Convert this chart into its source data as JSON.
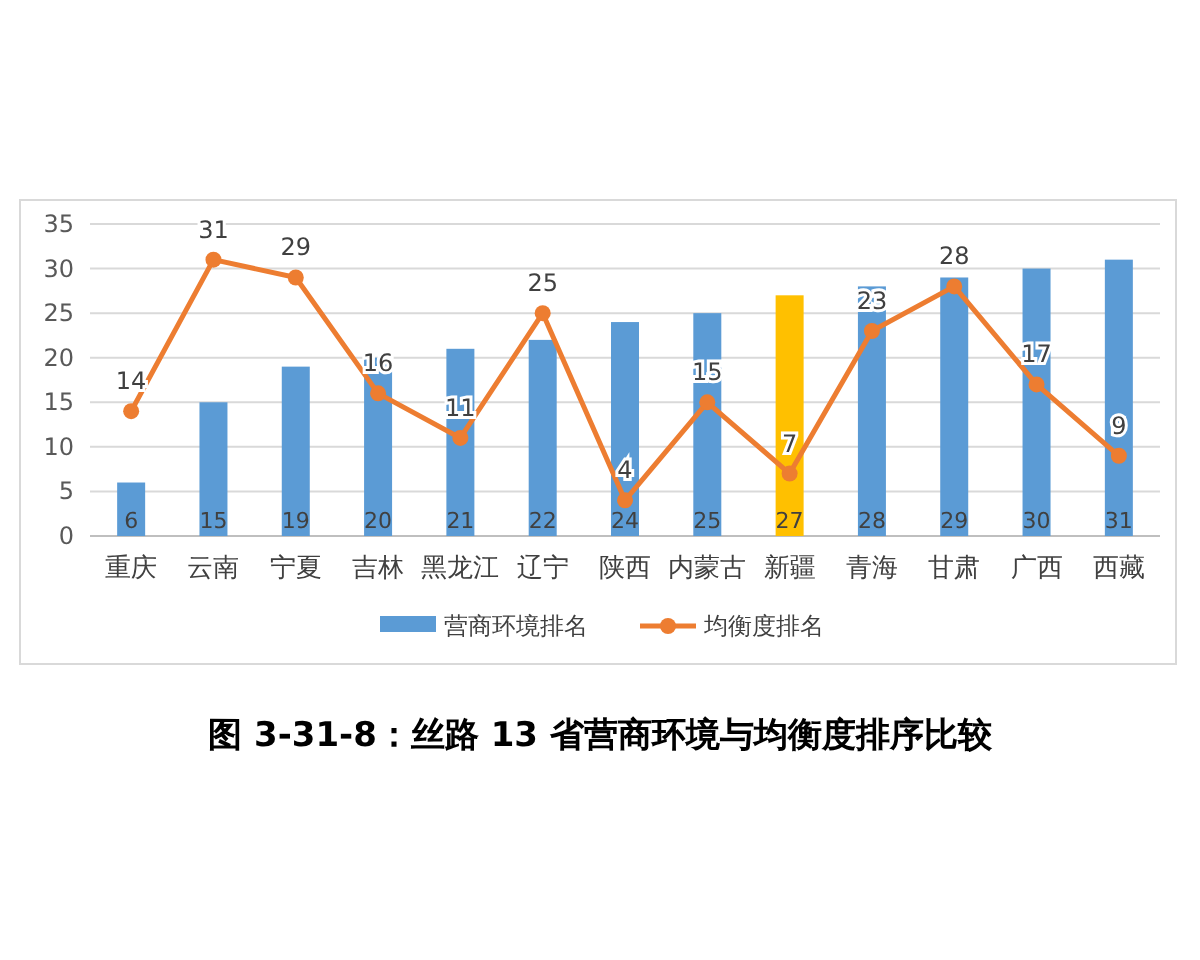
{
  "chart_data": {
    "type": "bar",
    "title": "图 3-31-8：丝路 13 省营商环境与均衡度排序比较",
    "categories": [
      "重庆",
      "云南",
      "宁夏",
      "吉林",
      "黑龙江",
      "辽宁",
      "陕西",
      "内蒙古",
      "新疆",
      "青海",
      "甘肃",
      "广西",
      "西藏"
    ],
    "series": [
      {
        "name": "营商环境排名",
        "color": "#5b9bd5",
        "colors": [
          "#5b9bd5",
          "#5b9bd5",
          "#5b9bd5",
          "#5b9bd5",
          "#5b9bd5",
          "#5b9bd5",
          "#5b9bd5",
          "#5b9bd5",
          "#ffc000",
          "#5b9bd5",
          "#5b9bd5",
          "#5b9bd5",
          "#5b9bd5"
        ],
        "values": [
          6,
          15,
          19,
          20,
          21,
          22,
          24,
          25,
          27,
          28,
          29,
          30,
          31
        ]
      },
      {
        "name": "均衡度排名",
        "type": "line",
        "color": "#ed7d31",
        "values": [
          14,
          31,
          29,
          16,
          11,
          25,
          4,
          15,
          7,
          23,
          28,
          17,
          9
        ]
      }
    ],
    "ylim": [
      0,
      35
    ],
    "yticks": [
      0,
      5,
      10,
      15,
      20,
      25,
      30,
      35
    ],
    "grid": "y",
    "legend": "bottom",
    "marker": "circle",
    "data_labels": true
  }
}
